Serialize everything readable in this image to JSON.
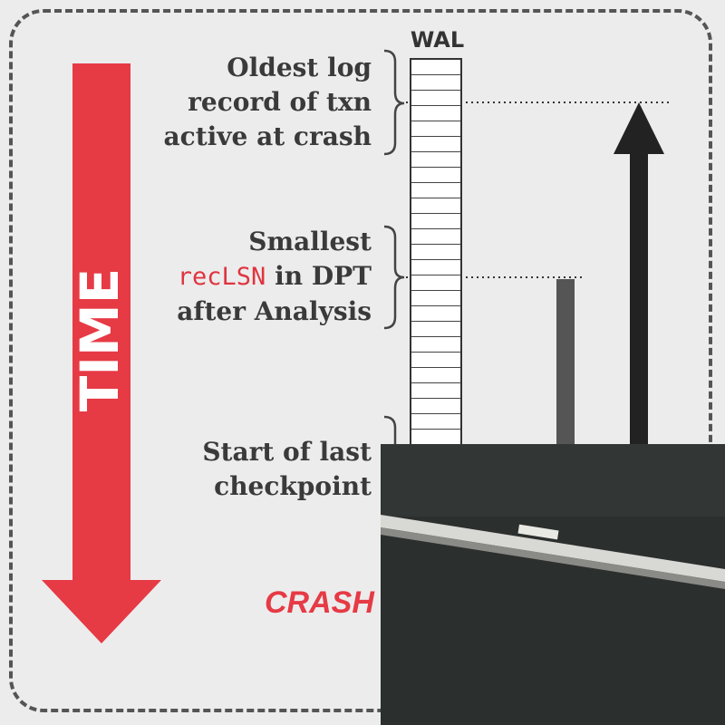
{
  "wal": {
    "label": "WAL",
    "cell_count": 25
  },
  "labels": {
    "oldest": [
      "Oldest log",
      "record of txn",
      "active at crash"
    ],
    "smallest_line1": "Smallest",
    "smallest_mono": "recLSN",
    "smallest_line2_rest": " in DPT",
    "smallest_line3": "after Analysis",
    "checkpoint": [
      "Start of last",
      "checkpoint"
    ]
  },
  "time_label": "TIME",
  "crash_label": "CRASH",
  "colors": {
    "time_arrow": "#e63a45",
    "dark_arrow": "#222222",
    "bar": "#555555",
    "board": "#2b2f2d"
  },
  "icons": [
    "time-arrow-icon",
    "up-arrow-icon",
    "brace-icon"
  ]
}
